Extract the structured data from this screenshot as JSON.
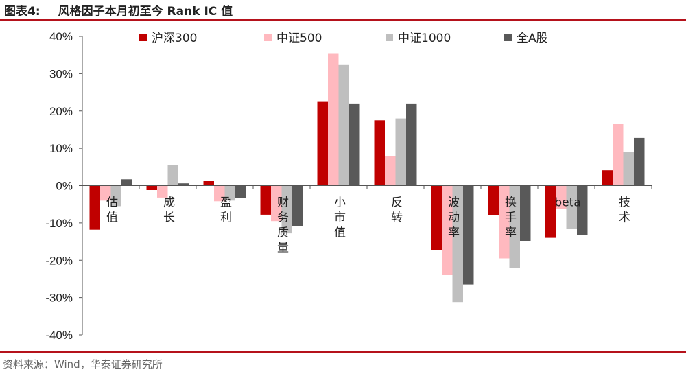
{
  "header": {
    "label": "图表4:",
    "title": "风格因子本月初至今 Rank IC 值"
  },
  "source": "资料来源：Wind，华泰证券研究所",
  "colors": {
    "rule": "#b5121b"
  },
  "chart_data": {
    "type": "bar",
    "categories": [
      "估值",
      "成长",
      "盈利",
      "财务质量",
      "小市值",
      "反转",
      "波动率",
      "换手率",
      "beta",
      "技术"
    ],
    "series": [
      {
        "name": "沪深300",
        "color": "#c00000",
        "values": [
          -11.8,
          -1.2,
          1.2,
          -7.8,
          22.6,
          17.5,
          -17.2,
          -8.0,
          -14.0,
          4.1
        ]
      },
      {
        "name": "中证500",
        "color": "#ffb9bf",
        "values": [
          -4.0,
          -3.2,
          -4.2,
          -9.5,
          35.5,
          8.0,
          -24.0,
          -19.5,
          -6.2,
          16.5
        ]
      },
      {
        "name": "中证1000",
        "color": "#bfbfbf",
        "values": [
          -5.5,
          5.5,
          -4.0,
          -12.8,
          32.5,
          18.0,
          -31.2,
          -22.0,
          -11.5,
          9.0
        ]
      },
      {
        "name": "全A股",
        "color": "#595959",
        "values": [
          1.7,
          0.6,
          -3.3,
          -10.8,
          22.0,
          22.0,
          -26.5,
          -14.8,
          -13.2,
          12.8
        ]
      }
    ],
    "ylim": [
      -40,
      40
    ],
    "yticks": [
      "40%",
      "30%",
      "20%",
      "10%",
      "0%",
      "-10%",
      "-20%",
      "-30%",
      "-40%"
    ],
    "legend_position": "top",
    "grid": false
  }
}
